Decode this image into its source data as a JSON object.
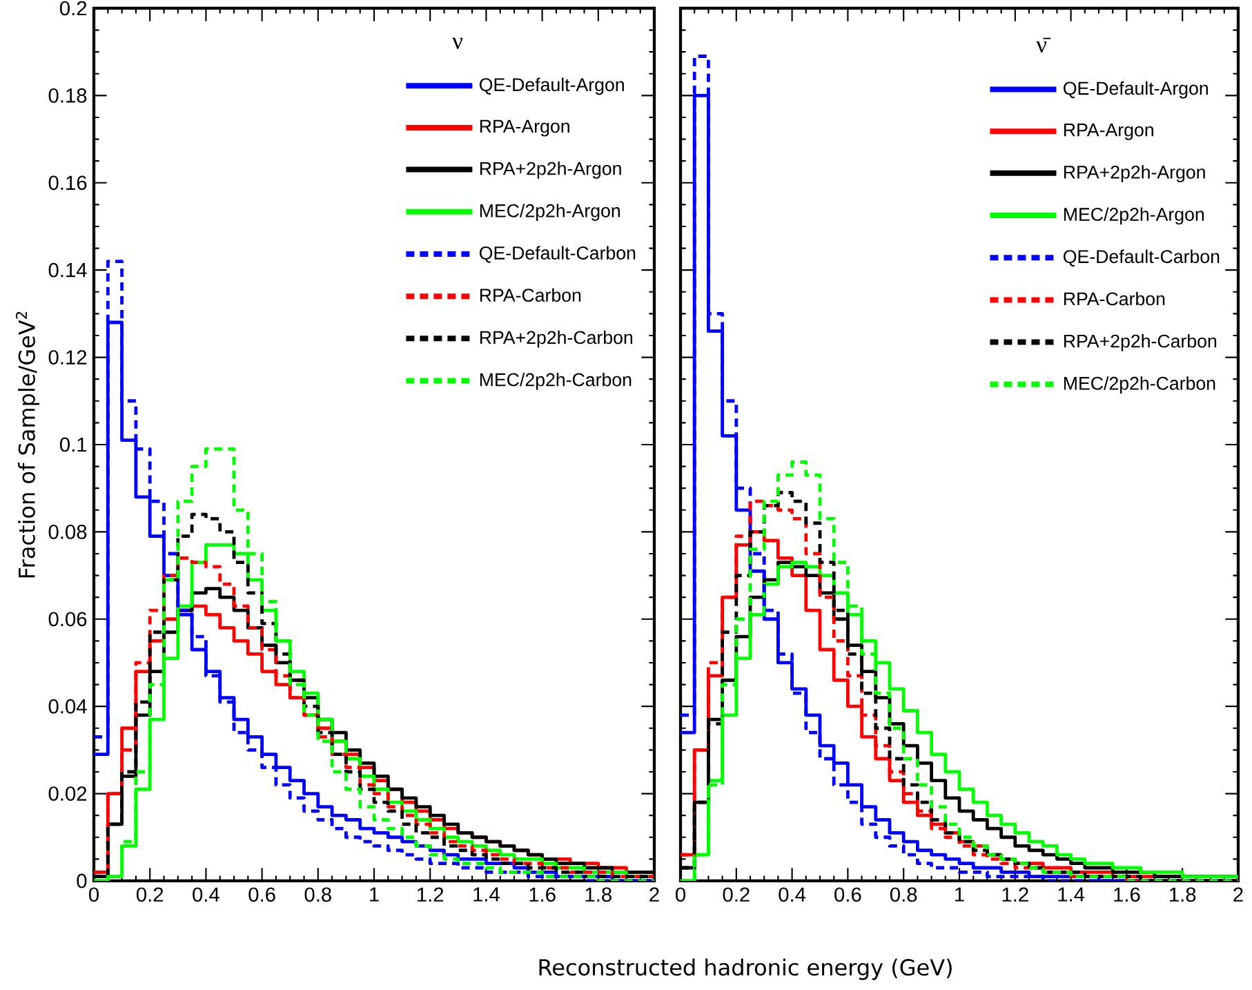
{
  "chart_data": [
    {
      "type": "histogram",
      "ylabel": "Fraction of Sample/GeV$^{2}$",
      "legend_title": "ν",
      "legend": "top right",
      "bins": [
        0,
        0.05,
        0.1,
        0.15,
        0.2,
        0.25,
        0.3,
        0.35,
        0.4,
        0.45,
        0.5,
        0.55,
        0.6,
        0.65,
        0.7,
        0.75,
        0.8,
        0.85,
        0.9,
        0.95,
        1,
        1.05,
        1.1,
        1.15,
        1.2,
        1.25,
        1.3,
        1.35,
        1.4,
        1.45,
        1.5,
        1.55,
        1.6,
        1.65,
        1.7,
        1.75,
        1.8,
        1.85,
        1.9,
        1.95,
        2
      ],
      "xlim": [
        0,
        2
      ],
      "ylim": [
        0,
        0.2
      ],
      "xticks": [
        0,
        0.2,
        0.4,
        0.6,
        0.8,
        1,
        1.2,
        1.4,
        1.6,
        1.8,
        2
      ],
      "yticks": [
        0,
        0.02,
        0.04,
        0.06,
        0.08,
        0.1,
        0.12,
        0.14,
        0.16,
        0.18,
        0.2
      ],
      "series": [
        {
          "name": "QE-Default-Argon",
          "color": "#0000ff",
          "line_style": "solid",
          "values": [
            0.029,
            0.128,
            0.101,
            0.088,
            0.079,
            0.07,
            0.061,
            0.053,
            0.048,
            0.042,
            0.037,
            0.033,
            0.029,
            0.026,
            0.023,
            0.02,
            0.017,
            0.015,
            0.014,
            0.012,
            0.011,
            0.01,
            0.009,
            0.008,
            0.007,
            0.006,
            0.005,
            0.005,
            0.004,
            0.004,
            0.003,
            0.002,
            0.002,
            0.001,
            0.001,
            0.001,
            0.001,
            0,
            0,
            0
          ]
        },
        {
          "name": "RPA-Argon",
          "color": "#ff0000",
          "line_style": "solid",
          "values": [
            0.002,
            0.02,
            0.035,
            0.048,
            0.055,
            0.06,
            0.062,
            0.063,
            0.061,
            0.058,
            0.055,
            0.052,
            0.048,
            0.045,
            0.042,
            0.038,
            0.035,
            0.032,
            0.029,
            0.026,
            0.023,
            0.021,
            0.018,
            0.016,
            0.014,
            0.012,
            0.011,
            0.01,
            0.009,
            0.008,
            0.007,
            0.006,
            0.005,
            0.005,
            0.004,
            0.004,
            0.003,
            0.003,
            0.002,
            0.002
          ]
        },
        {
          "name": "RPA+2p2h-Argon",
          "color": "#000000",
          "line_style": "solid",
          "values": [
            0.001,
            0.013,
            0.024,
            0.038,
            0.048,
            0.057,
            0.062,
            0.066,
            0.067,
            0.065,
            0.062,
            0.058,
            0.054,
            0.05,
            0.046,
            0.042,
            0.037,
            0.034,
            0.03,
            0.027,
            0.024,
            0.021,
            0.019,
            0.017,
            0.015,
            0.013,
            0.011,
            0.01,
            0.009,
            0.008,
            0.007,
            0.006,
            0.005,
            0.004,
            0.004,
            0.003,
            0.003,
            0.002,
            0.002,
            0.002
          ]
        },
        {
          "name": "MEC/2p2h-Argon",
          "color": "#00ff00",
          "line_style": "solid",
          "values": [
            0,
            0.001,
            0.008,
            0.021,
            0.037,
            0.051,
            0.063,
            0.073,
            0.077,
            0.077,
            0.075,
            0.069,
            0.062,
            0.055,
            0.048,
            0.043,
            0.037,
            0.032,
            0.028,
            0.024,
            0.021,
            0.018,
            0.016,
            0.014,
            0.012,
            0.01,
            0.009,
            0.008,
            0.007,
            0.006,
            0.005,
            0.005,
            0.004,
            0.003,
            0.003,
            0.002,
            0.002,
            0.002,
            0.001,
            0.001
          ]
        },
        {
          "name": "QE-Default-Carbon",
          "color": "#0202fd",
          "line_style": "dashed",
          "values": [
            0.033,
            0.142,
            0.11,
            0.099,
            0.087,
            0.075,
            0.062,
            0.056,
            0.047,
            0.041,
            0.034,
            0.03,
            0.026,
            0.022,
            0.019,
            0.016,
            0.014,
            0.012,
            0.01,
            0.009,
            0.008,
            0.007,
            0.006,
            0.005,
            0.004,
            0.004,
            0.003,
            0.003,
            0.002,
            0.002,
            0.002,
            0.001,
            0.001,
            0.001,
            0.001,
            0,
            0,
            0,
            0,
            0
          ]
        },
        {
          "name": "RPA-Carbon",
          "color": "#fd0202",
          "line_style": "dashed",
          "values": [
            0.002,
            0.02,
            0.03,
            0.05,
            0.062,
            0.07,
            0.074,
            0.073,
            0.072,
            0.068,
            0.063,
            0.058,
            0.053,
            0.047,
            0.042,
            0.038,
            0.033,
            0.029,
            0.026,
            0.022,
            0.02,
            0.017,
            0.015,
            0.013,
            0.011,
            0.009,
            0.008,
            0.007,
            0.006,
            0.005,
            0.004,
            0.004,
            0.003,
            0.003,
            0.002,
            0.002,
            0.002,
            0.001,
            0.001,
            0.001
          ]
        },
        {
          "name": "RPA+2p2h-Carbon",
          "color": "#030303",
          "line_style": "dashed",
          "values": [
            0.001,
            0.013,
            0.025,
            0.041,
            0.057,
            0.069,
            0.079,
            0.084,
            0.083,
            0.08,
            0.073,
            0.066,
            0.059,
            0.052,
            0.046,
            0.04,
            0.034,
            0.029,
            0.025,
            0.021,
            0.018,
            0.016,
            0.013,
            0.011,
            0.01,
            0.008,
            0.007,
            0.006,
            0.005,
            0.004,
            0.004,
            0.003,
            0.003,
            0.002,
            0.002,
            0.001,
            0.001,
            0.001,
            0.001,
            0.001
          ]
        },
        {
          "name": "MEC/2p2h-Carbon",
          "color": "#02fd02",
          "line_style": "dashed",
          "values": [
            0,
            0.001,
            0.009,
            0.025,
            0.045,
            0.069,
            0.087,
            0.095,
            0.099,
            0.099,
            0.085,
            0.075,
            0.064,
            0.055,
            0.045,
            0.038,
            0.032,
            0.025,
            0.021,
            0.017,
            0.014,
            0.012,
            0.01,
            0.008,
            0.006,
            0.005,
            0.004,
            0.004,
            0.003,
            0.002,
            0.002,
            0.002,
            0.001,
            0.001,
            0.001,
            0.001,
            0,
            0,
            0,
            0
          ]
        }
      ]
    },
    {
      "type": "histogram",
      "xlabel": "Reconstructed hadronic energy  (GeV)",
      "legend_title": "ν̄",
      "legend": "top right",
      "tick_labels": "x",
      "bins": [
        0,
        0.05,
        0.1,
        0.15,
        0.2,
        0.25,
        0.3,
        0.35,
        0.4,
        0.45,
        0.5,
        0.55,
        0.6,
        0.65,
        0.7,
        0.75,
        0.8,
        0.85,
        0.9,
        0.95,
        1,
        1.05,
        1.1,
        1.15,
        1.2,
        1.25,
        1.3,
        1.35,
        1.4,
        1.45,
        1.5,
        1.55,
        1.6,
        1.65,
        1.7,
        1.75,
        1.8,
        1.85,
        1.9,
        1.95,
        2
      ],
      "xlim": [
        0,
        2
      ],
      "ylim": [
        0,
        0.2
      ],
      "xticks": [
        0,
        0.2,
        0.4,
        0.6,
        0.8,
        1,
        1.2,
        1.4,
        1.6,
        1.8,
        2
      ],
      "yticks": [
        0,
        0.02,
        0.04,
        0.06,
        0.08,
        0.1,
        0.12,
        0.14,
        0.16,
        0.18,
        0.2
      ],
      "series": [
        {
          "name": "QE-Default-Argon",
          "color": "#0000ff",
          "line_style": "solid",
          "values": [
            0.034,
            0.18,
            0.126,
            0.102,
            0.085,
            0.071,
            0.06,
            0.05,
            0.044,
            0.038,
            0.031,
            0.027,
            0.022,
            0.017,
            0.014,
            0.011,
            0.009,
            0.007,
            0.006,
            0.005,
            0.004,
            0.003,
            0.003,
            0.002,
            0.002,
            0.001,
            0.001,
            0.001,
            0.001,
            0.001,
            0,
            0,
            0,
            0,
            0,
            0,
            0,
            0,
            0,
            0
          ]
        },
        {
          "name": "RPA-Argon",
          "color": "#ff0000",
          "line_style": "solid",
          "values": [
            0.006,
            0.03,
            0.047,
            0.065,
            0.077,
            0.08,
            0.078,
            0.074,
            0.07,
            0.062,
            0.053,
            0.046,
            0.04,
            0.033,
            0.028,
            0.023,
            0.018,
            0.015,
            0.013,
            0.011,
            0.009,
            0.008,
            0.006,
            0.005,
            0.004,
            0.004,
            0.003,
            0.003,
            0.002,
            0.002,
            0.002,
            0.001,
            0.001,
            0.001,
            0.001,
            0.001,
            0.001,
            0.001,
            0.001,
            0.001
          ]
        },
        {
          "name": "RPA+2p2h-Argon",
          "color": "#000000",
          "line_style": "solid",
          "values": [
            0.003,
            0.018,
            0.037,
            0.046,
            0.056,
            0.065,
            0.069,
            0.073,
            0.072,
            0.07,
            0.066,
            0.06,
            0.054,
            0.048,
            0.042,
            0.036,
            0.031,
            0.027,
            0.023,
            0.019,
            0.016,
            0.014,
            0.012,
            0.01,
            0.008,
            0.007,
            0.006,
            0.005,
            0.004,
            0.003,
            0.003,
            0.002,
            0.002,
            0.002,
            0.001,
            0.001,
            0.001,
            0.001,
            0.001,
            0.001
          ]
        },
        {
          "name": "MEC/2p2h-Argon",
          "color": "#00ff00",
          "line_style": "solid",
          "values": [
            0,
            0.006,
            0.023,
            0.038,
            0.051,
            0.061,
            0.068,
            0.072,
            0.073,
            0.072,
            0.07,
            0.066,
            0.061,
            0.055,
            0.05,
            0.044,
            0.039,
            0.034,
            0.029,
            0.025,
            0.021,
            0.018,
            0.015,
            0.013,
            0.011,
            0.009,
            0.008,
            0.006,
            0.005,
            0.004,
            0.004,
            0.003,
            0.003,
            0.002,
            0.002,
            0.002,
            0.001,
            0.001,
            0.001,
            0.001
          ]
        },
        {
          "name": "QE-Default-Carbon",
          "color": "#0202fd",
          "line_style": "dashed",
          "values": [
            0.038,
            0.189,
            0.13,
            0.11,
            0.09,
            0.075,
            0.062,
            0.052,
            0.043,
            0.034,
            0.028,
            0.022,
            0.018,
            0.013,
            0.01,
            0.008,
            0.006,
            0.004,
            0.003,
            0.003,
            0.002,
            0.002,
            0.001,
            0.001,
            0.001,
            0.001,
            0,
            0,
            0,
            0,
            0,
            0,
            0,
            0,
            0,
            0,
            0,
            0,
            0,
            0
          ]
        },
        {
          "name": "RPA-Carbon",
          "color": "#fd0202",
          "line_style": "dashed",
          "values": [
            0.006,
            0.03,
            0.05,
            0.065,
            0.079,
            0.087,
            0.086,
            0.085,
            0.083,
            0.075,
            0.065,
            0.055,
            0.047,
            0.038,
            0.031,
            0.025,
            0.02,
            0.016,
            0.012,
            0.01,
            0.008,
            0.006,
            0.005,
            0.004,
            0.003,
            0.003,
            0.002,
            0.002,
            0.001,
            0.001,
            0.001,
            0.001,
            0,
            0,
            0,
            0,
            0,
            0,
            0,
            0
          ]
        },
        {
          "name": "RPA+2p2h-Carbon",
          "color": "#030303",
          "line_style": "dashed",
          "values": [
            0.003,
            0.018,
            0.036,
            0.057,
            0.07,
            0.08,
            0.086,
            0.089,
            0.087,
            0.082,
            0.073,
            0.062,
            0.052,
            0.043,
            0.035,
            0.028,
            0.022,
            0.018,
            0.014,
            0.011,
            0.009,
            0.007,
            0.006,
            0.005,
            0.004,
            0.003,
            0.002,
            0.002,
            0.002,
            0.001,
            0.001,
            0.001,
            0.001,
            0,
            0,
            0,
            0,
            0,
            0,
            0
          ]
        },
        {
          "name": "MEC/2p2h-Carbon",
          "color": "#02fd02",
          "line_style": "dashed",
          "values": [
            0,
            0.006,
            0.022,
            0.045,
            0.06,
            0.076,
            0.087,
            0.093,
            0.096,
            0.093,
            0.083,
            0.073,
            0.063,
            0.052,
            0.043,
            0.035,
            0.028,
            0.022,
            0.017,
            0.013,
            0.01,
            0.008,
            0.006,
            0.005,
            0.004,
            0.003,
            0.002,
            0.002,
            0.001,
            0.001,
            0.001,
            0.001,
            0,
            0,
            0,
            0,
            0,
            0,
            0,
            0
          ]
        }
      ]
    }
  ]
}
